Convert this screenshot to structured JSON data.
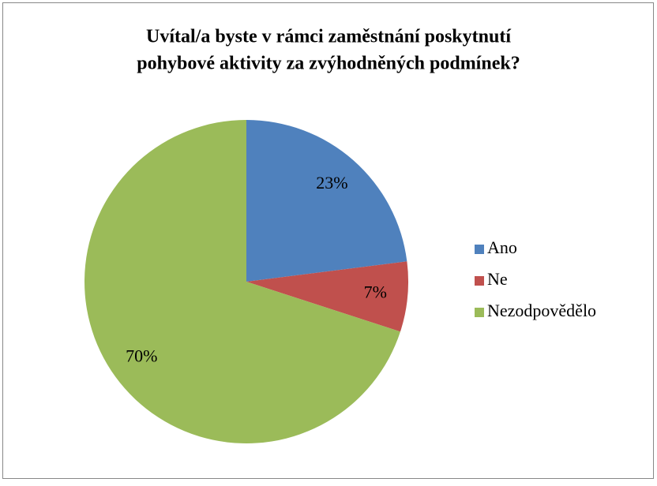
{
  "chart_data": {
    "type": "pie",
    "title": [
      "Uvítal/a byste v rámci zaměstnání poskytnutí",
      "pohybové aktivity za zvýhodněných podmínek?"
    ],
    "categories": [
      "Ano",
      "Ne",
      "Nezodpovědělo"
    ],
    "values": [
      23,
      7,
      70
    ],
    "value_labels": [
      "23%",
      "7%",
      "70%"
    ],
    "colors": [
      "#4f81bd",
      "#c0504d",
      "#9bbb59"
    ],
    "legend": "right"
  }
}
